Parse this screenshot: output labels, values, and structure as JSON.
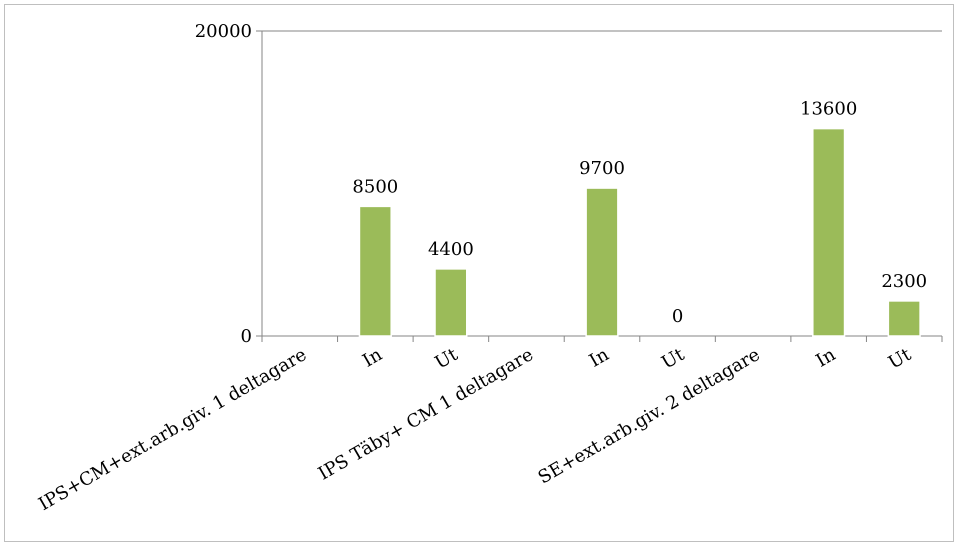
{
  "chart_data": {
    "type": "bar",
    "categories": [
      "IPS+CM+ext.arb.giv. 1 deltagare",
      "In",
      "Ut",
      "IPS Täby+ CM 1 deltagare",
      "In",
      "Ut",
      "SE+ext.arb.giv. 2 deltagare",
      "In",
      "Ut"
    ],
    "values": [
      null,
      8500,
      4400,
      null,
      9700,
      0,
      null,
      13600,
      2300
    ],
    "data_labels": [
      "",
      "8500",
      "4400",
      "",
      "9700",
      "0",
      "",
      "13600",
      "2300"
    ],
    "ylim": [
      0,
      20000
    ],
    "yticks": [
      "0",
      "20000"
    ],
    "grid": false,
    "legend": "none",
    "bar_color": "#9bbb59",
    "bar_edge": "#ffffff"
  }
}
